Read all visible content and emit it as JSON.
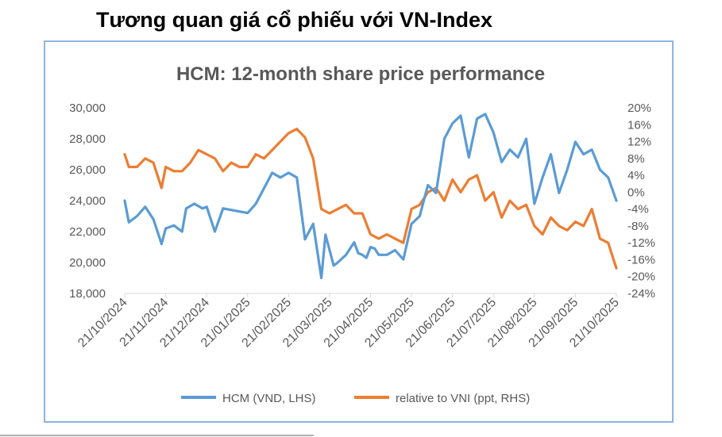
{
  "page": {
    "heading": "Tương quan giá cổ phiếu với VN-Index"
  },
  "colors": {
    "hcm": "#5b9bd5",
    "relative": "#ed7d31",
    "axis_text": "#595959",
    "title_text": "#595959",
    "frame": "#8eb4e3",
    "axis_line": "#d9d9d9"
  },
  "chart_data": {
    "type": "line",
    "title": "HCM: 12-month share price performance",
    "x": [
      "21/10/2024",
      "21/11/2024",
      "21/12/2024",
      "21/01/2025",
      "21/02/2025",
      "21/03/2025",
      "21/04/2025",
      "21/05/2025",
      "21/06/2025",
      "21/07/2025",
      "21/08/2025",
      "21/09/2025",
      "21/10/2025"
    ],
    "y_left": {
      "label": "",
      "range": [
        18000,
        30000
      ],
      "ticks": [
        18000,
        20000,
        22000,
        24000,
        26000,
        28000,
        30000
      ],
      "tick_labels": [
        "18,000",
        "20,000",
        "22,000",
        "24,000",
        "26,000",
        "28,000",
        "30,000"
      ]
    },
    "y_right": {
      "label": "",
      "range": [
        -24,
        20
      ],
      "ticks": [
        -24,
        -20,
        -16,
        -12,
        -8,
        -4,
        0,
        4,
        8,
        12,
        16,
        20
      ],
      "tick_labels": [
        "-24%",
        "-20%",
        "-16%",
        "-12%",
        "-8%",
        "-4%",
        "0%",
        "4%",
        "8%",
        "12%",
        "16%",
        "20%"
      ]
    },
    "series": [
      {
        "name": "HCM (VND, LHS)",
        "axis": "left",
        "x": [
          0,
          0.1,
          0.2,
          0.3,
          0.5,
          0.7,
          0.9,
          1.0,
          1.2,
          1.4,
          1.5,
          1.7,
          1.9,
          2.0,
          2.2,
          2.4,
          2.6,
          2.8,
          3.0,
          3.2,
          3.4,
          3.6,
          3.8,
          4.0,
          4.2,
          4.4,
          4.6,
          4.8,
          4.9,
          5.1,
          5.2,
          5.4,
          5.6,
          5.7,
          5.8,
          5.9,
          6.0,
          6.1,
          6.2,
          6.4,
          6.6,
          6.8,
          7.0,
          7.2,
          7.4,
          7.6,
          7.8,
          8.0,
          8.2,
          8.4,
          8.6,
          8.8,
          9.0,
          9.2,
          9.4,
          9.6,
          9.8,
          10.0,
          10.2,
          10.4,
          10.6,
          10.8,
          11.0,
          11.2,
          11.4,
          11.6,
          11.8,
          12.0
        ],
        "values": [
          24000,
          22600,
          22800,
          23000,
          23600,
          22800,
          21200,
          22200,
          22400,
          22000,
          23500,
          23800,
          23500,
          23600,
          22000,
          23500,
          23400,
          23300,
          23200,
          23800,
          24800,
          25800,
          25500,
          25800,
          25500,
          21500,
          22500,
          19000,
          21800,
          19800,
          20000,
          20500,
          21300,
          20600,
          20500,
          20300,
          21000,
          20900,
          20500,
          20500,
          20800,
          20200,
          22500,
          23000,
          25000,
          24500,
          28000,
          29000,
          29500,
          26800,
          29300,
          29600,
          28400,
          26500,
          27300,
          26800,
          28000,
          23800,
          25500,
          27000,
          24500,
          26000,
          27800,
          27000,
          27300,
          26000,
          25500,
          24000
        ]
      },
      {
        "name": "relative to VNI (ppt, RHS)",
        "axis": "right",
        "x": [
          0,
          0.1,
          0.3,
          0.5,
          0.7,
          0.9,
          1.0,
          1.2,
          1.4,
          1.6,
          1.8,
          2.0,
          2.2,
          2.4,
          2.6,
          2.8,
          3.0,
          3.2,
          3.4,
          3.6,
          3.8,
          4.0,
          4.2,
          4.4,
          4.6,
          4.8,
          5.0,
          5.2,
          5.4,
          5.6,
          5.8,
          6.0,
          6.2,
          6.4,
          6.6,
          6.8,
          7.0,
          7.2,
          7.4,
          7.6,
          7.8,
          8.0,
          8.2,
          8.4,
          8.6,
          8.8,
          9.0,
          9.2,
          9.4,
          9.6,
          9.8,
          10.0,
          10.2,
          10.4,
          10.6,
          10.8,
          11.0,
          11.2,
          11.4,
          11.6,
          11.8,
          11.9,
          12.0
        ],
        "values": [
          9,
          6,
          6,
          8,
          7,
          1,
          6,
          5,
          5,
          7,
          10,
          9,
          8,
          5,
          7,
          6,
          6,
          9,
          8,
          10,
          12,
          14,
          15,
          13,
          8,
          -4,
          -5,
          -4,
          -3,
          -5,
          -5,
          -10,
          -11,
          -10,
          -11,
          -12,
          -4,
          -3,
          0,
          1,
          -2,
          3,
          0,
          3,
          4,
          -2,
          0,
          -6,
          -2,
          -4,
          -3,
          -8,
          -10,
          -6,
          -8,
          -9,
          -7,
          -8,
          -4,
          -11,
          -12,
          -15,
          -18
        ]
      }
    ],
    "legend": [
      "HCM (VND, LHS)",
      "relative to VNI (ppt, RHS)"
    ],
    "legend_position": "bottom",
    "grid": false
  }
}
